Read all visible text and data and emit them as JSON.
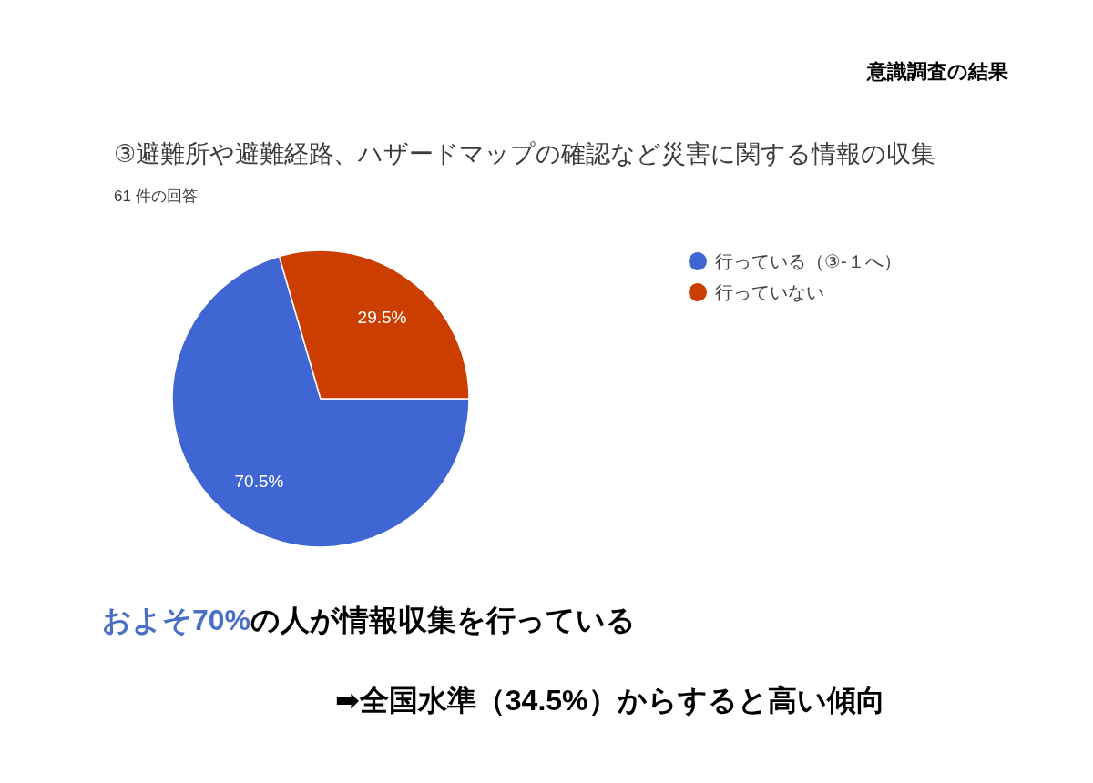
{
  "chart_data": {
    "type": "pie",
    "title": "③避難所や避難経路、ハザードマップの確認など災害に関する情報の収集",
    "subtitle": "61 件の回答",
    "categories": [
      "行っている（③-１へ）",
      "行っていない"
    ],
    "values": [
      70.5,
      29.5
    ],
    "colors": [
      "#3f66d3",
      "#cc3d00"
    ],
    "value_labels": [
      "70.5%",
      "29.5%"
    ],
    "legend": "right",
    "annotations": [
      "意識調査の結果",
      "およそ70%",
      "の人が情報収集を行っている",
      "➡全国水準（34.5%）からすると高い傾向"
    ]
  }
}
